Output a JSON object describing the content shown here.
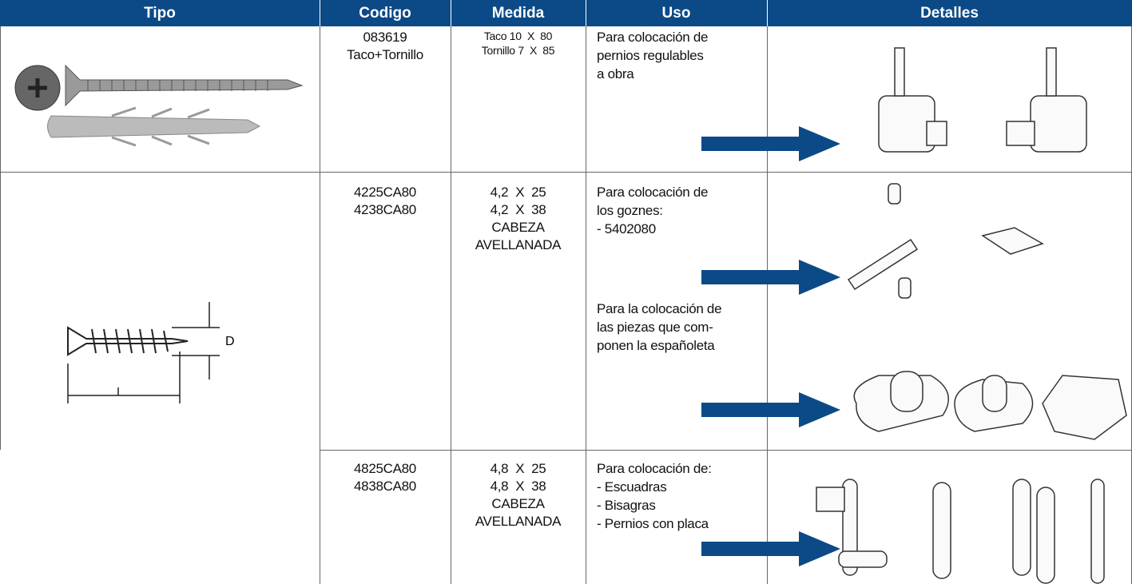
{
  "header": [
    "Tipo",
    "Codigo",
    "Medida",
    "Uso",
    "Detalles"
  ],
  "diagram_label": "D",
  "rows": [
    {
      "codigo": [
        "083619",
        "Taco+Tornillo"
      ],
      "medida": [
        "Taco 10  X  80",
        "Tornillo 7  X  85"
      ],
      "uso": [
        [
          "Para colocación de",
          "pernios regulables",
          "a obra"
        ]
      ]
    },
    {
      "codigo": [
        "4225CA80",
        "4238CA80"
      ],
      "medida": [
        "4,2  X  25",
        "4,2  X  38",
        "CABEZA",
        "AVELLANADA"
      ],
      "uso": [
        [
          "Para colocación de",
          "los goznes:",
          "- 5402080"
        ],
        [
          "Para la colocación de",
          "las piezas que com-",
          "ponen la españoleta"
        ]
      ]
    },
    {
      "codigo": [
        "4825CA80",
        "4838CA80"
      ],
      "medida": [
        "4,8  X  25",
        "4,8  X  38",
        "CABEZA",
        "AVELLANADA"
      ],
      "uso": [
        [
          "Para colocación de:",
          "- Escuadras",
          "- Bisagras",
          "- Pernios con placa"
        ]
      ]
    }
  ]
}
